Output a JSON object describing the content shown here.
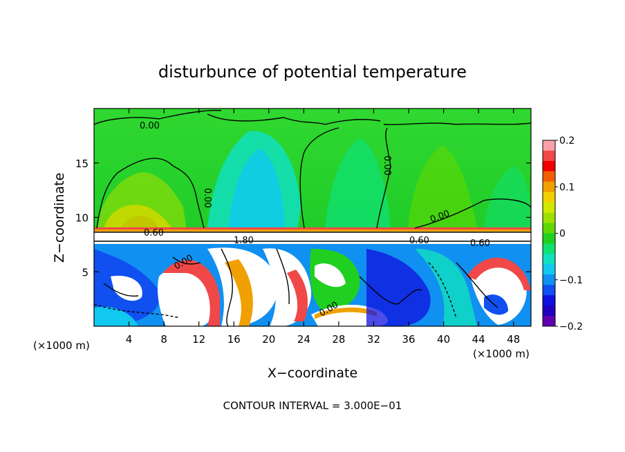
{
  "chart_data": {
    "type": "heatmap",
    "title": "disturbunce of potential temperature",
    "xlabel": "X−coordinate",
    "ylabel": "Z−coordinate",
    "x_unit_left": "(×1000 m)",
    "x_unit_right": "(×1000 m)",
    "xlim": [
      0,
      50
    ],
    "ylim": [
      0,
      20
    ],
    "x_ticks": [
      "4",
      "8",
      "12",
      "16",
      "20",
      "24",
      "28",
      "32",
      "36",
      "40",
      "44",
      "48"
    ],
    "y_ticks": [
      "5",
      "10",
      "15"
    ],
    "colorbar": {
      "range": [
        -0.2,
        0.2
      ],
      "ticks": [
        "0.2",
        "0.1",
        "0",
        "−0.1",
        "−0.2"
      ],
      "colors": [
        "#f9a0a8",
        "#f04848",
        "#f00000",
        "#f06000",
        "#f0a000",
        "#f0d000",
        "#d0e800",
        "#a0e000",
        "#60d800",
        "#20d020",
        "#10e070",
        "#10e0c0",
        "#10c8f0",
        "#1090f0",
        "#1050f0",
        "#1010e0",
        "#2000c0",
        "#6000b0"
      ]
    },
    "contour_labels": [
      "0.00",
      "0.00",
      "0.00",
      "0.00",
      "0.00",
      "0.60",
      "0.60",
      "0.60",
      "1.80",
      "0.00"
    ],
    "footer": "CONTOUR INTERVAL = 3.000E−01"
  }
}
